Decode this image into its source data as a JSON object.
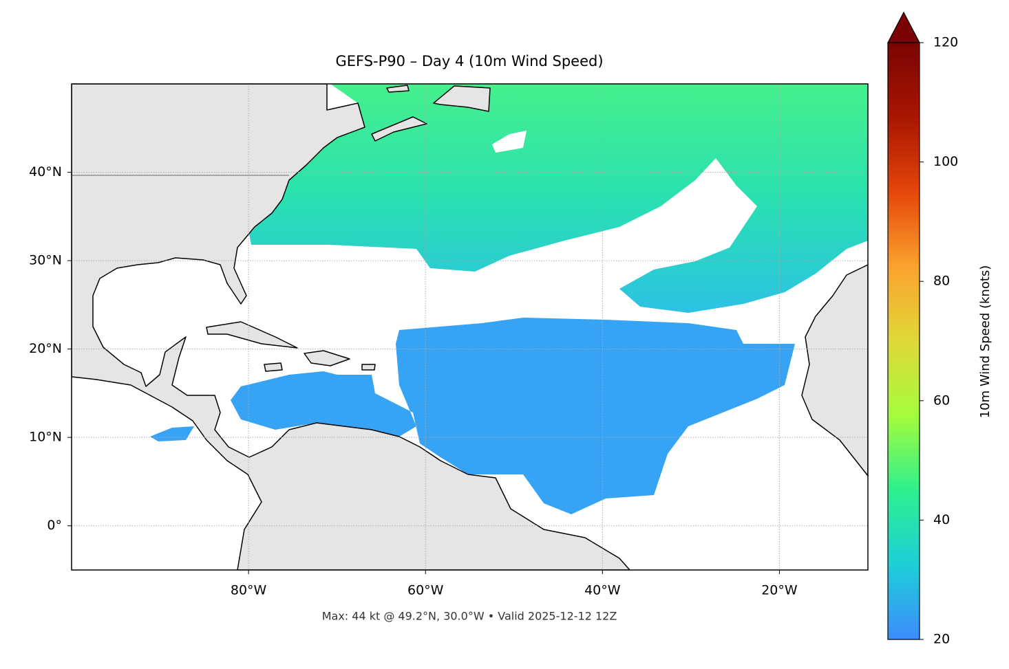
{
  "chart_data": {
    "type": "map",
    "title": "GEFS-P90 – Day 4 (10m Wind Speed)",
    "footnote": "Max: 44 kt @ 49.2°N, 30.0°W • Valid 2025-12-12 12Z",
    "xlim": [
      -100,
      -10
    ],
    "ylim": [
      -5,
      50
    ],
    "xticks": [
      {
        "value": -80,
        "label": "80°W"
      },
      {
        "value": -60,
        "label": "60°W"
      },
      {
        "value": -40,
        "label": "40°W"
      },
      {
        "value": -20,
        "label": "20°W"
      }
    ],
    "yticks": [
      {
        "value": 0,
        "label": "0°"
      },
      {
        "value": 10,
        "label": "10°N"
      },
      {
        "value": 20,
        "label": "20°N"
      },
      {
        "value": 30,
        "label": "30°N"
      },
      {
        "value": 40,
        "label": "40°N"
      }
    ],
    "grid": true,
    "colorbar": {
      "label": "10m Wind Speed (knots)",
      "lim": [
        20,
        120
      ],
      "ticks": [
        20,
        40,
        60,
        80,
        100,
        120
      ],
      "extend": "max",
      "colors": [
        "#3e8cfb",
        "#1ccfd8",
        "#2ef08e",
        "#a4fc3c",
        "#e0d838",
        "#fba22e",
        "#e4460a",
        "#a81602",
        "#7a0403"
      ]
    }
  }
}
